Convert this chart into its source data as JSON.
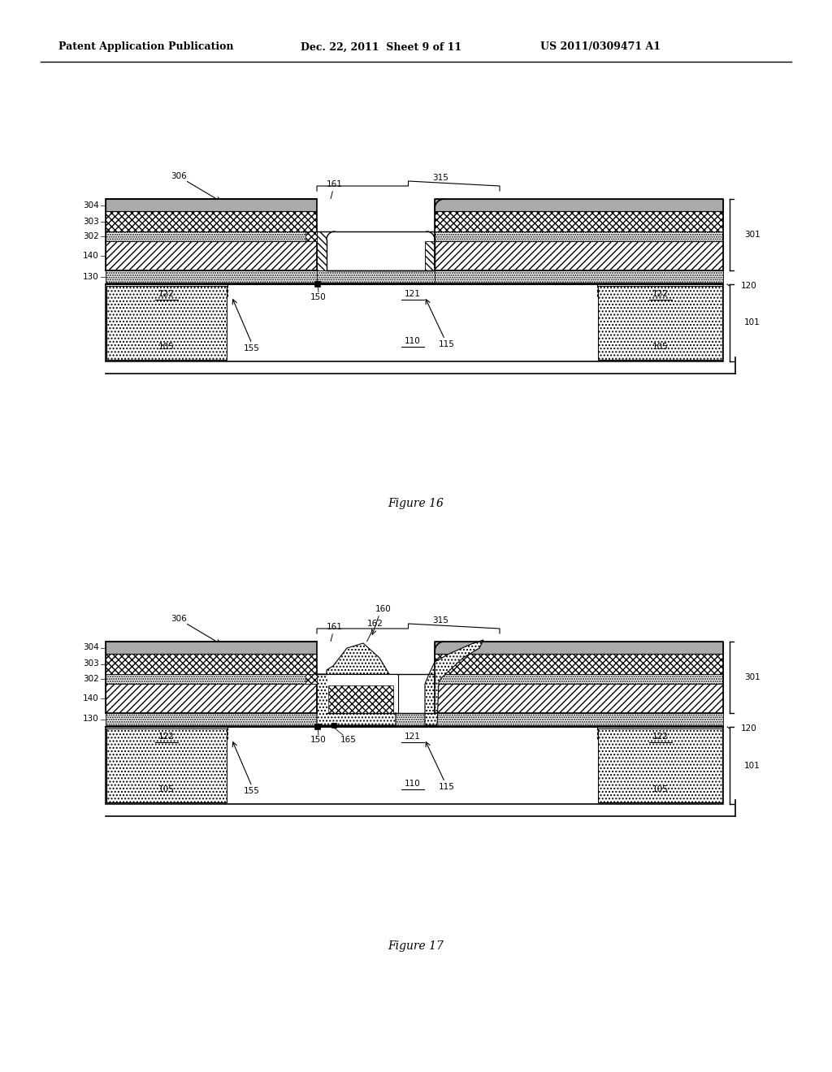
{
  "header_left": "Patent Application Publication",
  "header_mid": "Dec. 22, 2011  Sheet 9 of 11",
  "header_right": "US 2011/0309471 A1",
  "fig16_caption": "Figure 16",
  "fig17_caption": "Figure 17",
  "bg_color": "#ffffff"
}
